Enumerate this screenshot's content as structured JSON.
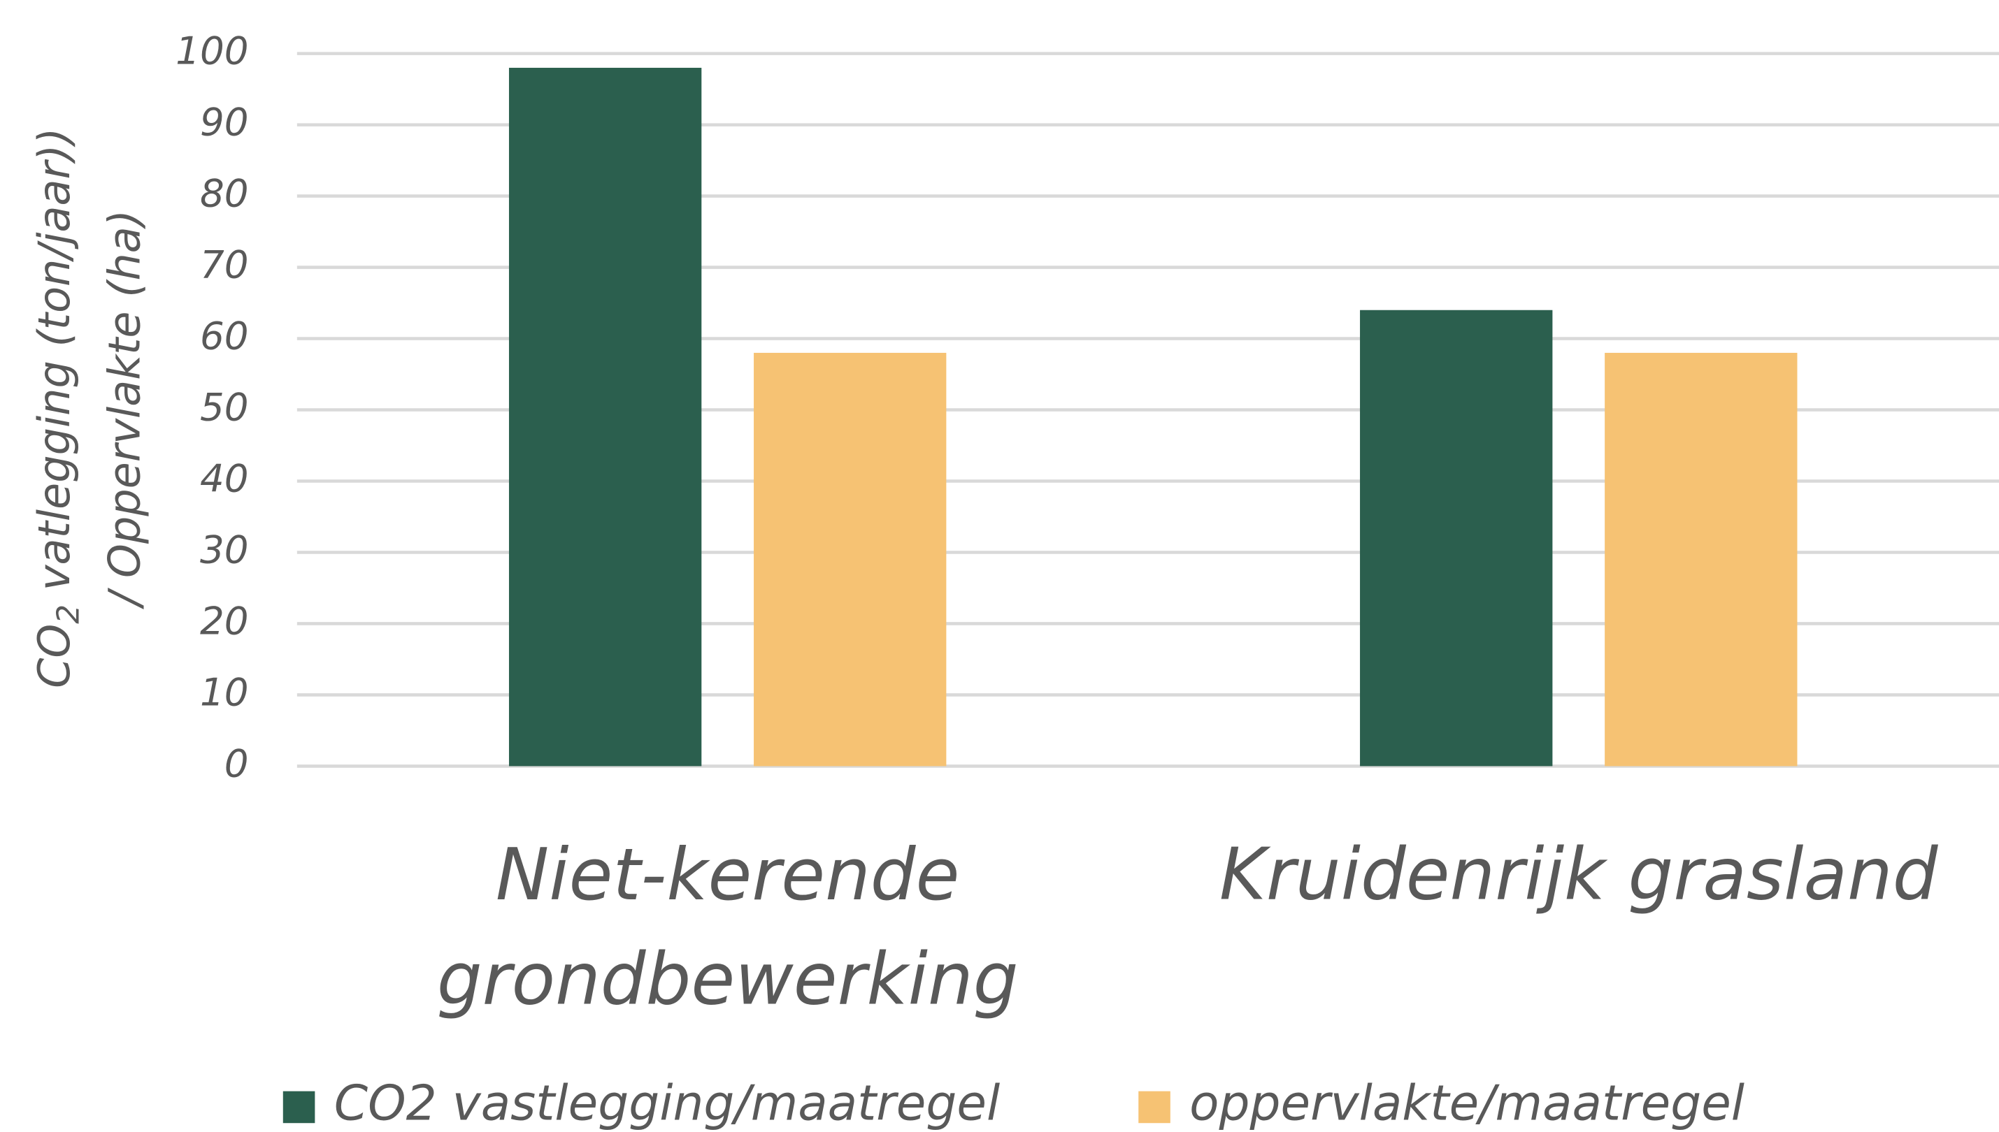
{
  "chart_data": {
    "type": "bar",
    "ylabel": {
      "line1": [
        "CO",
        "2",
        " vatlegging (ton/jaar))"
      ],
      "line2": "/ Oppervlakte (ha)"
    },
    "categories": [
      "Niet-kerende grondbewerking",
      "Kruidenrijk grasland"
    ],
    "series": [
      {
        "name": "CO2 vastlegging/maatregel",
        "color": "#2b5f4e",
        "values": [
          98,
          64
        ]
      },
      {
        "name": "oppervlakte/maatregel",
        "color": "#f6c273",
        "values": [
          58,
          58
        ]
      }
    ],
    "ylim": [
      0,
      100
    ],
    "yticks": [
      0,
      10,
      20,
      30,
      40,
      50,
      60,
      70,
      80,
      90,
      100
    ],
    "grid": true
  }
}
